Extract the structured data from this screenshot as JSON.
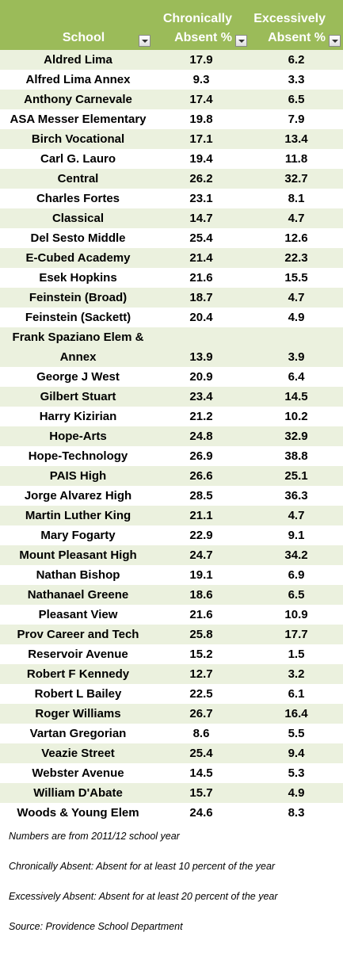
{
  "table": {
    "header": [
      "School",
      "Chronically Absent %",
      "Excessively Absent %"
    ],
    "rows": [
      [
        "Aldred Lima",
        17.9,
        6.2
      ],
      [
        "Alfred Lima Annex",
        9.3,
        3.3
      ],
      [
        "Anthony Carnevale",
        17.4,
        6.5
      ],
      [
        "ASA Messer Elementary",
        19.8,
        7.9
      ],
      [
        "Birch Vocational",
        17.1,
        13.4
      ],
      [
        "Carl G. Lauro",
        19.4,
        11.8
      ],
      [
        "Central",
        26.2,
        32.7
      ],
      [
        "Charles Fortes",
        23.1,
        8.1
      ],
      [
        "Classical",
        14.7,
        4.7
      ],
      [
        "Del Sesto Middle",
        25.4,
        12.6
      ],
      [
        "E-Cubed Academy",
        21.4,
        22.3
      ],
      [
        "Esek Hopkins",
        21.6,
        15.5
      ],
      [
        "Feinstein (Broad)",
        18.7,
        4.7
      ],
      [
        "Feinstein (Sackett)",
        20.4,
        4.9
      ],
      [
        "Frank Spaziano Elem & Annex",
        13.9,
        3.9
      ],
      [
        "George J West",
        20.9,
        6.4
      ],
      [
        "Gilbert Stuart",
        23.4,
        14.5
      ],
      [
        "Harry Kizirian",
        21.2,
        10.2
      ],
      [
        "Hope-Arts",
        24.8,
        32.9
      ],
      [
        "Hope-Technology",
        26.9,
        38.8
      ],
      [
        "PAIS High",
        26.6,
        25.1
      ],
      [
        "Jorge Alvarez High",
        28.5,
        36.3
      ],
      [
        "Martin Luther King",
        21.1,
        4.7
      ],
      [
        "Mary Fogarty",
        22.9,
        9.1
      ],
      [
        "Mount Pleasant High",
        24.7,
        34.2
      ],
      [
        "Nathan Bishop",
        19.1,
        6.9
      ],
      [
        "Nathanael Greene",
        18.6,
        6.5
      ],
      [
        "Pleasant View",
        21.6,
        10.9
      ],
      [
        "Prov Career and Tech",
        25.8,
        17.7
      ],
      [
        "Reservoir Avenue",
        15.2,
        1.5
      ],
      [
        "Robert F Kennedy",
        12.7,
        3.2
      ],
      [
        "Robert L Bailey",
        22.5,
        6.1
      ],
      [
        "Roger Williams",
        26.7,
        16.4
      ],
      [
        "Vartan Gregorian",
        8.6,
        5.5
      ],
      [
        "Veazie Street",
        25.4,
        9.4
      ],
      [
        "Webster Avenue",
        14.5,
        5.3
      ],
      [
        "William D'Abate",
        15.7,
        4.9
      ],
      [
        "Woods & Young Elem",
        24.6,
        8.3
      ]
    ]
  },
  "notes": [
    "Numbers are from 2011/12 school year",
    "Chronically Absent: Absent for at least 10 percent of the year",
    "Excessively Absent: Absent for at least 20 percent of the year",
    "Source: Providence School Department"
  ]
}
